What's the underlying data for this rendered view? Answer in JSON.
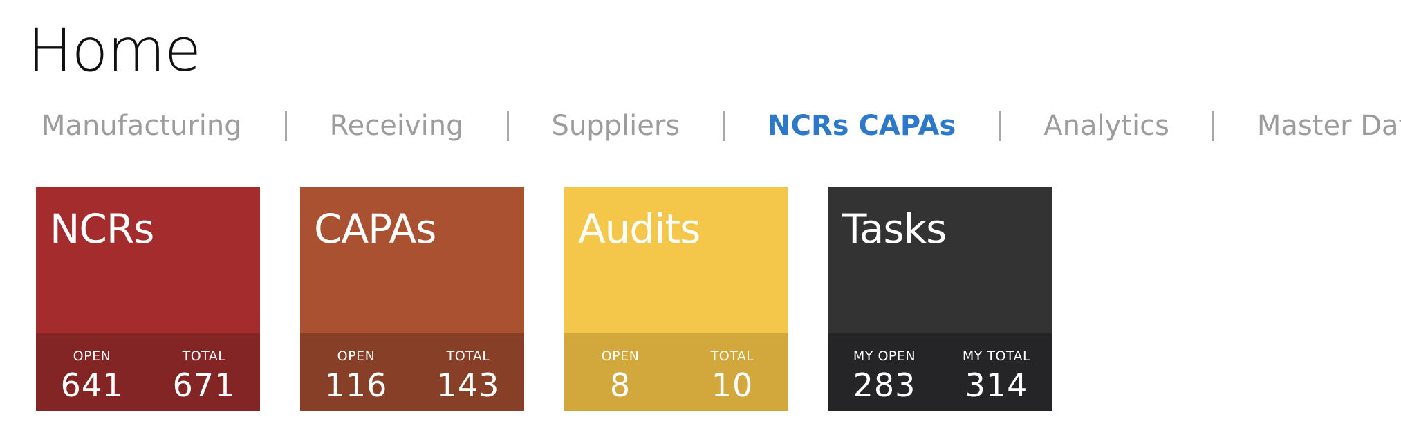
{
  "page": {
    "title": "Home"
  },
  "nav": {
    "items": [
      {
        "label": "Manufacturing",
        "active": false
      },
      {
        "label": "Receiving",
        "active": false
      },
      {
        "label": "Suppliers",
        "active": false
      },
      {
        "label": "NCRs CAPAs",
        "active": true
      },
      {
        "label": "Analytics",
        "active": false
      },
      {
        "label": "Master Data",
        "active": false
      }
    ]
  },
  "tiles": [
    {
      "title": "NCRs",
      "bg": "#a52c2c",
      "footer_bg": "#832525",
      "stats": [
        {
          "label": "OPEN",
          "value": "641"
        },
        {
          "label": "TOTAL",
          "value": "671"
        }
      ]
    },
    {
      "title": "CAPAs",
      "bg": "#a95130",
      "footer_bg": "#883f28",
      "stats": [
        {
          "label": "OPEN",
          "value": "116"
        },
        {
          "label": "TOTAL",
          "value": "143"
        }
      ]
    },
    {
      "title": "Audits",
      "bg": "#f4c64a",
      "footer_bg": "#d2a73c",
      "stats": [
        {
          "label": "OPEN",
          "value": "8"
        },
        {
          "label": "TOTAL",
          "value": "10"
        }
      ]
    },
    {
      "title": "Tasks",
      "bg": "#333333",
      "footer_bg": "#252427",
      "stats": [
        {
          "label": "MY OPEN",
          "value": "283"
        },
        {
          "label": "MY TOTAL",
          "value": "314"
        }
      ]
    }
  ],
  "colors": {
    "nav_active": "#2e78c9",
    "nav_inactive": "#9c9c9c"
  }
}
